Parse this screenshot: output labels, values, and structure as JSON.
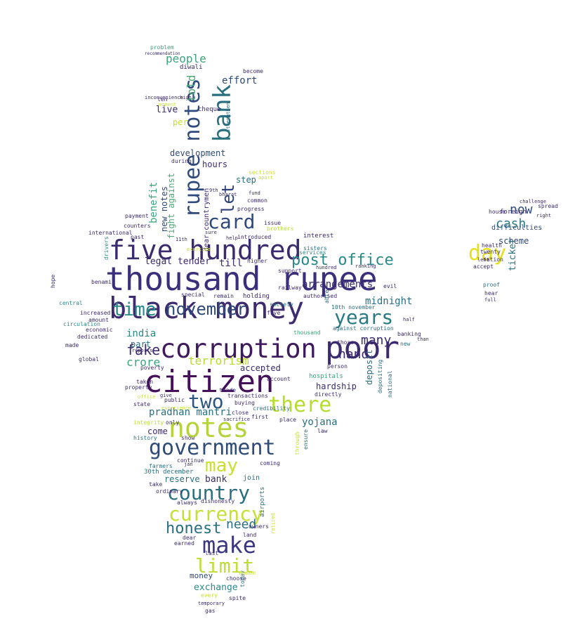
{
  "words": [
    {
      "text": "thousand rupee",
      "color": "#3b2e7a"
    },
    {
      "text": "black money",
      "color": "#3d2b6e"
    },
    {
      "text": "five hundred",
      "color": "#3b2a6e"
    },
    {
      "text": "corruption",
      "color": "#3e1a5c"
    },
    {
      "text": "citizen",
      "color": "#45105a"
    },
    {
      "text": "notes",
      "color": "#b5d33a"
    },
    {
      "text": "government",
      "color": "#2f4c78"
    },
    {
      "text": "poor",
      "color": "#3b2a6e"
    },
    {
      "text": "rupee notes",
      "color": "#2f4a7c"
    },
    {
      "text": "bank",
      "color": "#2a6f80"
    },
    {
      "text": "there",
      "color": "#b6dd2e"
    },
    {
      "text": "country",
      "color": "#2a6f80"
    },
    {
      "text": "make",
      "color": "#3b3680"
    },
    {
      "text": "currency",
      "color": "#c7de35"
    },
    {
      "text": "limit",
      "color": "#bede37"
    },
    {
      "text": "two",
      "color": "#2d5580"
    },
    {
      "text": "card",
      "color": "#2f4a7a"
    },
    {
      "text": "day",
      "color": "#e4e11c"
    },
    {
      "text": "years",
      "color": "#2a7a84"
    },
    {
      "text": "time",
      "color": "#2a8a88"
    },
    {
      "text": "november",
      "color": "#2f4a7a"
    },
    {
      "text": "post office",
      "color": "#2a8a88"
    },
    {
      "text": "may",
      "color": "#c9df2f"
    },
    {
      "text": "honest",
      "color": "#2a6f80"
    },
    {
      "text": "need",
      "color": "#2a6f80"
    },
    {
      "text": "fake",
      "color": "#3b2a6e"
    },
    {
      "text": "let",
      "color": "#2e3f7a"
    },
    {
      "text": "told",
      "color": "#4aaa74"
    },
    {
      "text": "people",
      "color": "#3aa57a"
    },
    {
      "text": "effort",
      "color": "#2f4c78"
    },
    {
      "text": "cash",
      "color": "#2a7a84"
    },
    {
      "text": "now",
      "color": "#2f4a7a"
    },
    {
      "text": "many",
      "color": "#3b2a6e"
    },
    {
      "text": "hand",
      "color": "#3b2a6e"
    },
    {
      "text": "terrorism",
      "color": "#b6dd2e"
    },
    {
      "text": "crore",
      "color": "#3aa57a"
    },
    {
      "text": "midnight",
      "color": "#2a6f80"
    },
    {
      "text": "arrangements",
      "color": "#3b2a6e"
    },
    {
      "text": "pradhan mantri",
      "color": "#2a6f80"
    },
    {
      "text": "yojana",
      "color": "#2a6f80"
    },
    {
      "text": "benefit",
      "color": "#3aa57a"
    },
    {
      "text": "new notes",
      "color": "#2f4a7a"
    },
    {
      "text": "legal tender",
      "color": "#3b2a6e"
    },
    {
      "text": "till",
      "color": "#3b2a6e"
    },
    {
      "text": "development",
      "color": "#2f4c78"
    },
    {
      "text": "hours",
      "color": "#3b2a6e"
    },
    {
      "text": "step",
      "color": "#2a6f80"
    },
    {
      "text": "scheme",
      "color": "#2f4a7a"
    },
    {
      "text": "ticket",
      "color": "#2a6f80"
    },
    {
      "text": "india",
      "color": "#2a8a88"
    },
    {
      "text": "part",
      "color": "#2a6f80"
    },
    {
      "text": "accepted",
      "color": "#3b2a6e"
    },
    {
      "text": "hardship",
      "color": "#3b2a6e"
    },
    {
      "text": "deposit",
      "color": "#2a6f80"
    },
    {
      "text": "come",
      "color": "#3b2a6e"
    },
    {
      "text": "bank",
      "color": "#3b2a6e"
    },
    {
      "text": "reserve",
      "color": "#2a6f80"
    },
    {
      "text": "join",
      "color": "#2a6f80"
    },
    {
      "text": "money",
      "color": "#2f4a7a"
    },
    {
      "text": "exchange",
      "color": "#2a8a88"
    },
    {
      "text": "live",
      "color": "#3b2a6e"
    },
    {
      "text": "per",
      "color": "#c9df2f"
    },
    {
      "text": "diwali",
      "color": "#3b2a6e"
    },
    {
      "text": "cheque",
      "color": "#3b2a6e"
    },
    {
      "text": "fight against",
      "color": "#4aaa74"
    },
    {
      "text": "introduced",
      "color": "#3b2a6e"
    },
    {
      "text": "interest",
      "color": "#3b2a6e"
    },
    {
      "text": "10th november",
      "color": "#2a6f80"
    },
    {
      "text": "against corruption",
      "color": "#2a6f80"
    },
    {
      "text": "circulation",
      "color": "#2a8a88"
    },
    {
      "text": "economic",
      "color": "#3b2a6e"
    },
    {
      "text": "30th december",
      "color": "#2a6f80"
    },
    {
      "text": "take",
      "color": "#3b2a6e"
    },
    {
      "text": "airports",
      "color": "#2a6f80"
    },
    {
      "text": "dear countrymen",
      "color": "#3b2a6e"
    },
    {
      "text": "difficulties",
      "color": "#2f4a7a"
    },
    {
      "text": "foreign",
      "color": "#3b2a6e"
    },
    {
      "text": "house",
      "color": "#3b2a6e"
    },
    {
      "text": "nation",
      "color": "#3b2a6e"
    },
    {
      "text": "accept",
      "color": "#3b2a6e"
    },
    {
      "text": "twenty",
      "color": "#3b2a6e"
    },
    {
      "text": "health",
      "color": "#3b2a6e"
    },
    {
      "text": "left",
      "color": "#3b2a6e"
    },
    {
      "text": "proof",
      "color": "#2a6f80"
    },
    {
      "text": "hear",
      "color": "#3b2a6e"
    },
    {
      "text": "full",
      "color": "#3b2a6e"
    },
    {
      "text": "spread",
      "color": "#3b2a6e"
    },
    {
      "text": "right",
      "color": "#3b2a6e"
    },
    {
      "text": "challenge",
      "color": "#3b2a6e"
    },
    {
      "text": "sisters",
      "color": "#2a6f80"
    },
    {
      "text": "brothers",
      "color": "#b6dd2e"
    },
    {
      "text": "society",
      "color": "#2a6f80"
    },
    {
      "text": "those",
      "color": "#3b2a6e"
    },
    {
      "text": "thousand",
      "color": "#3aa57a"
    },
    {
      "text": "hundred",
      "color": "#3b2a6e"
    },
    {
      "text": "ranking",
      "color": "#3b2a6e"
    },
    {
      "text": "railway",
      "color": "#3b2a6e"
    },
    {
      "text": "authorised",
      "color": "#3b2a6e"
    },
    {
      "text": "services",
      "color": "#2a8a88"
    },
    {
      "text": "holding",
      "color": "#3b2a6e"
    },
    {
      "text": "special",
      "color": "#3b2a6e"
    },
    {
      "text": "remain",
      "color": "#3b2a6e"
    },
    {
      "text": "dedicated",
      "color": "#3b2a6e"
    },
    {
      "text": "made",
      "color": "#3b2a6e"
    },
    {
      "text": "global",
      "color": "#3b2a6e"
    },
    {
      "text": "amount",
      "color": "#3b2a6e"
    },
    {
      "text": "increased",
      "color": "#3b2a6e"
    },
    {
      "text": "central",
      "color": "#2a8a88"
    },
    {
      "text": "drivers",
      "color": "#2a8a88"
    },
    {
      "text": "international",
      "color": "#3b2a6e"
    },
    {
      "text": "counters",
      "color": "#3b2a6e"
    },
    {
      "text": "payment",
      "color": "#3b2a6e"
    },
    {
      "text": "past",
      "color": "#3b2a6e"
    },
    {
      "text": "benami",
      "color": "#3b2a6e"
    },
    {
      "text": "property",
      "color": "#3b2a6e"
    },
    {
      "text": "public",
      "color": "#3b2a6e"
    },
    {
      "text": "state",
      "color": "#3b2a6e"
    },
    {
      "text": "office",
      "color": "#c9df2f"
    },
    {
      "text": "integrity",
      "color": "#b6dd2e"
    },
    {
      "text": "only",
      "color": "#3b2a6e"
    },
    {
      "text": "history",
      "color": "#2a6f80"
    },
    {
      "text": "show",
      "color": "#3b2a6e"
    },
    {
      "text": "continue",
      "color": "#3b2a6e"
    },
    {
      "text": "farmers",
      "color": "#2a6f80"
    },
    {
      "text": "ordinary",
      "color": "#3b2a6e"
    },
    {
      "text": "buying",
      "color": "#3b2a6e"
    },
    {
      "text": "close",
      "color": "#3b2a6e"
    },
    {
      "text": "first",
      "color": "#3b2a6e"
    },
    {
      "text": "sacrifice",
      "color": "#3b2a6e"
    },
    {
      "text": "credibility",
      "color": "#2a6f80"
    },
    {
      "text": "transactions",
      "color": "#3b2a6e"
    },
    {
      "text": "directly",
      "color": "#3b2a6e"
    },
    {
      "text": "account",
      "color": "#3b2a6e"
    },
    {
      "text": "trade",
      "color": "#3b2a6e"
    },
    {
      "text": "poverty",
      "color": "#3b2a6e"
    },
    {
      "text": "taken",
      "color": "#3b2a6e"
    },
    {
      "text": "hospitals",
      "color": "#3aa57a"
    },
    {
      "text": "person",
      "color": "#3b2a6e"
    },
    {
      "text": "national",
      "color": "#2a6f80"
    },
    {
      "text": "depositing",
      "color": "#2a6f80"
    },
    {
      "text": "banking",
      "color": "#3b2a6e"
    },
    {
      "text": "law",
      "color": "#3b2a6e"
    },
    {
      "text": "place",
      "color": "#3b2a6e"
    },
    {
      "text": "ensure",
      "color": "#2a6f80"
    },
    {
      "text": "through",
      "color": "#c9df2f"
    },
    {
      "text": "coming",
      "color": "#3b2a6e"
    },
    {
      "text": "new",
      "color": "#2a6f80"
    },
    {
      "text": "than",
      "color": "#3b2a6e"
    },
    {
      "text": "half",
      "color": "#3b2a6e"
    },
    {
      "text": "evil",
      "color": "#3b2a6e"
    },
    {
      "text": "able",
      "color": "#2a6f80"
    },
    {
      "text": "support",
      "color": "#3b2a6e"
    },
    {
      "text": "higher",
      "color": "#3b2a6e"
    },
    {
      "text": "five",
      "color": "#3b2a6e"
    },
    {
      "text": "last",
      "color": "#3b2a6e"
    },
    {
      "text": "land",
      "color": "#3b2a6e"
    },
    {
      "text": "earned",
      "color": "#3b2a6e"
    },
    {
      "text": "dear",
      "color": "#3b2a6e"
    },
    {
      "text": "always",
      "color": "#3b2a6e"
    },
    {
      "text": "dishonesty",
      "color": "#3b2a6e"
    },
    {
      "text": "owners",
      "color": "#3b2a6e"
    },
    {
      "text": "every",
      "color": "#c9df2f"
    },
    {
      "text": "spite",
      "color": "#3b2a6e"
    },
    {
      "text": "choose",
      "color": "#3b2a6e"
    },
    {
      "text": "today",
      "color": "#2a6f80"
    },
    {
      "text": "women",
      "color": "#c9df2f"
    },
    {
      "text": "temporary",
      "color": "#3b2a6e"
    },
    {
      "text": "gas",
      "color": "#3b2a6e"
    },
    {
      "text": "retired",
      "color": "#c9df2f"
    },
    {
      "text": "issue",
      "color": "#3b2a6e"
    },
    {
      "text": "progress",
      "color": "#3b2a6e"
    },
    {
      "text": "common",
      "color": "#3b2a6e"
    },
    {
      "text": "fund",
      "color": "#3b2a6e"
    },
    {
      "text": "bharat",
      "color": "#3b2a6e"
    },
    {
      "text": "sections",
      "color": "#c9df2f"
    },
    {
      "text": "apart",
      "color": "#c9df2f"
    },
    {
      "text": "during",
      "color": "#3b2a6e"
    },
    {
      "text": "become",
      "color": "#3b2a6e"
    },
    {
      "text": "problem",
      "color": "#3aa57a"
    },
    {
      "text": "recommendation",
      "color": "#3b2a6e"
    },
    {
      "text": "moment",
      "color": "#c9df2f"
    },
    {
      "text": "inconvenience",
      "color": "#3b2a6e"
    },
    {
      "text": "ten",
      "color": "#3b2a6e"
    },
    {
      "text": "high",
      "color": "#3b2a6e"
    },
    {
      "text": "strengthen",
      "color": "#2a6f80"
    },
    {
      "text": "hope",
      "color": "#3b2a6e"
    },
    {
      "text": "reports",
      "color": "#3b2a6e"
    },
    {
      "text": "give",
      "color": "#3b2a6e"
    },
    {
      "text": "experience",
      "color": "#c9df2f"
    },
    {
      "text": "11th",
      "color": "#3b2a6e"
    },
    {
      "text": "9th",
      "color": "#3b2a6e"
    },
    {
      "text": "help",
      "color": "#3b2a6e"
    },
    {
      "text": "sure",
      "color": "#3b2a6e"
    },
    {
      "text": "exercise",
      "color": "#c9df2f"
    },
    {
      "text": "jan",
      "color": "#3b2a6e"
    }
  ]
}
